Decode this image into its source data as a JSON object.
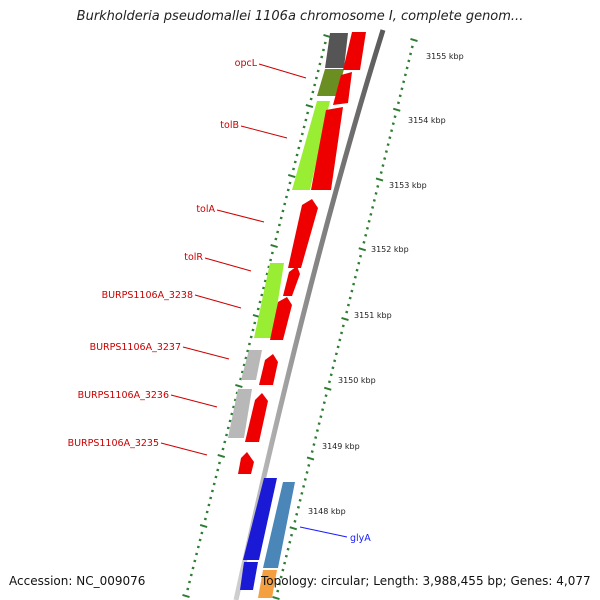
{
  "title": "Burkholderia pseudomallei 1106a chromosome I, complete genom...",
  "accession": "Accession: NC_009076",
  "topology": "Topology: circular; Length: 3,988,455 bp; Genes: 4,077",
  "ticks": [
    {
      "label": "3155 kbp"
    },
    {
      "label": "3154 kbp"
    },
    {
      "label": "3153 kbp"
    },
    {
      "label": "3152 kbp"
    },
    {
      "label": "3151 kbp"
    },
    {
      "label": "3150 kbp"
    },
    {
      "label": "3149 kbp"
    },
    {
      "label": "3148 kbp"
    }
  ],
  "genes": [
    {
      "name": "opcL"
    },
    {
      "name": "tolB"
    },
    {
      "name": "tolA"
    },
    {
      "name": "tolR"
    },
    {
      "name": "BURPS1106A_3238"
    },
    {
      "name": "BURPS1106A_3237"
    },
    {
      "name": "BURPS1106A_3236"
    },
    {
      "name": "BURPS1106A_3235"
    },
    {
      "name": "glyA"
    }
  ],
  "colors": {
    "red": "#ee0000",
    "lime": "#99ee33",
    "olive": "#6b8e23",
    "grey": "#b8b8b8",
    "dark_grey": "#555555",
    "blue": "#1a1ad6",
    "steel_blue": "#4a86b8",
    "orange": "#f5a040",
    "tick_green": "#2e7d32",
    "label_red": "#cc0000",
    "label_blue": "#1a1aff"
  }
}
